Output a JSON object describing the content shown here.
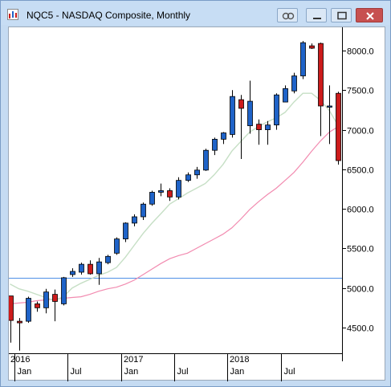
{
  "window": {
    "title": "NQC5 - NASDAQ Composite, Monthly"
  },
  "colors": {
    "up": "#1f63c8",
    "down": "#cc1b1b",
    "ma_short": "#c6dfc5",
    "ma_long": "#f28bb0",
    "hline": "#4f8fe6",
    "axis": "#000000"
  },
  "chart_data": {
    "type": "candlestick",
    "title": "NQC5 - NASDAQ Composite, Monthly",
    "ylim": [
      4200,
      8300
    ],
    "y_ticks": [
      4500,
      5000,
      5500,
      6000,
      6500,
      7000,
      7500,
      8000
    ],
    "y_tick_labels": [
      "4500.0",
      "5000.0",
      "5500.0",
      "6000.0",
      "6500.0",
      "7000.0",
      "7500.0",
      "8000.0"
    ],
    "year_labels": [
      {
        "label": "2016",
        "index": 0
      },
      {
        "label": "2017",
        "index": 13
      },
      {
        "label": "2018",
        "index": 25
      }
    ],
    "month_labels": [
      {
        "label": "Jan",
        "index": 1
      },
      {
        "label": "Jul",
        "index": 7
      },
      {
        "label": "Jan",
        "index": 13
      },
      {
        "label": "Jul",
        "index": 19
      },
      {
        "label": "Jan",
        "index": 25
      },
      {
        "label": "Jul",
        "index": 31
      }
    ],
    "horizontal_line": 5130,
    "candles": [
      {
        "o": 4900,
        "h": 4900,
        "l": 4310,
        "c": 4590
      },
      {
        "o": 4580,
        "h": 4620,
        "l": 4210,
        "c": 4560
      },
      {
        "o": 4580,
        "h": 4890,
        "l": 4560,
        "c": 4870
      },
      {
        "o": 4800,
        "h": 4830,
        "l": 4700,
        "c": 4750
      },
      {
        "o": 4750,
        "h": 4990,
        "l": 4680,
        "c": 4950
      },
      {
        "o": 4920,
        "h": 4980,
        "l": 4580,
        "c": 4830
      },
      {
        "o": 4800,
        "h": 5140,
        "l": 4780,
        "c": 5130
      },
      {
        "o": 5170,
        "h": 5250,
        "l": 5140,
        "c": 5210
      },
      {
        "o": 5200,
        "h": 5320,
        "l": 5170,
        "c": 5300
      },
      {
        "o": 5300,
        "h": 5350,
        "l": 5170,
        "c": 5180
      },
      {
        "o": 5180,
        "h": 5380,
        "l": 5040,
        "c": 5330
      },
      {
        "o": 5320,
        "h": 5420,
        "l": 5300,
        "c": 5400
      },
      {
        "o": 5440,
        "h": 5640,
        "l": 5420,
        "c": 5620
      },
      {
        "o": 5620,
        "h": 5830,
        "l": 5580,
        "c": 5820
      },
      {
        "o": 5820,
        "h": 5930,
        "l": 5780,
        "c": 5900
      },
      {
        "o": 5900,
        "h": 6080,
        "l": 5860,
        "c": 6060
      },
      {
        "o": 6060,
        "h": 6230,
        "l": 6040,
        "c": 6210
      },
      {
        "o": 6210,
        "h": 6320,
        "l": 6160,
        "c": 6230
      },
      {
        "o": 6230,
        "h": 6260,
        "l": 6100,
        "c": 6150
      },
      {
        "o": 6150,
        "h": 6400,
        "l": 6120,
        "c": 6360
      },
      {
        "o": 6360,
        "h": 6460,
        "l": 6340,
        "c": 6430
      },
      {
        "o": 6430,
        "h": 6530,
        "l": 6380,
        "c": 6490
      },
      {
        "o": 6490,
        "h": 6760,
        "l": 6480,
        "c": 6740
      },
      {
        "o": 6740,
        "h": 6900,
        "l": 6680,
        "c": 6880
      },
      {
        "o": 6880,
        "h": 6970,
        "l": 6820,
        "c": 6960
      },
      {
        "o": 6940,
        "h": 7500,
        "l": 6900,
        "c": 7420
      },
      {
        "o": 7380,
        "h": 7440,
        "l": 6630,
        "c": 7270
      },
      {
        "o": 7050,
        "h": 7620,
        "l": 6950,
        "c": 7360
      },
      {
        "o": 7070,
        "h": 7130,
        "l": 6810,
        "c": 7000
      },
      {
        "o": 7000,
        "h": 7110,
        "l": 6810,
        "c": 7060
      },
      {
        "o": 7060,
        "h": 7460,
        "l": 7000,
        "c": 7440
      },
      {
        "o": 7350,
        "h": 7560,
        "l": 7350,
        "c": 7520
      },
      {
        "o": 7490,
        "h": 7720,
        "l": 7460,
        "c": 7680
      },
      {
        "o": 7680,
        "h": 8120,
        "l": 7640,
        "c": 8100
      },
      {
        "o": 8060,
        "h": 8090,
        "l": 8020,
        "c": 8030
      },
      {
        "o": 8090,
        "h": 8100,
        "l": 6920,
        "c": 7300
      },
      {
        "o": 7300,
        "h": 7560,
        "l": 6820,
        "c": 7300
      },
      {
        "o": 7460,
        "h": 7480,
        "l": 6560,
        "c": 6610
      }
    ],
    "ma_short": [
      5050,
      4990,
      4960,
      4920,
      4880,
      4840,
      4890,
      5000,
      5060,
      5110,
      5160,
      5200,
      5260,
      5390,
      5540,
      5690,
      5820,
      5940,
      6060,
      6130,
      6200,
      6260,
      6320,
      6430,
      6560,
      6730,
      6850,
      6970,
      7040,
      7100,
      7150,
      7220,
      7350,
      7460,
      7460,
      7370,
      7240,
      7050
    ],
    "ma_long": [
      4800,
      4810,
      4820,
      4840,
      4850,
      4860,
      4870,
      4880,
      4890,
      4920,
      4960,
      4990,
      5010,
      5050,
      5100,
      5170,
      5240,
      5310,
      5370,
      5410,
      5440,
      5500,
      5560,
      5620,
      5680,
      5760,
      5870,
      5990,
      6090,
      6180,
      6260,
      6360,
      6460,
      6590,
      6730,
      6860,
      6970,
      7040
    ]
  }
}
